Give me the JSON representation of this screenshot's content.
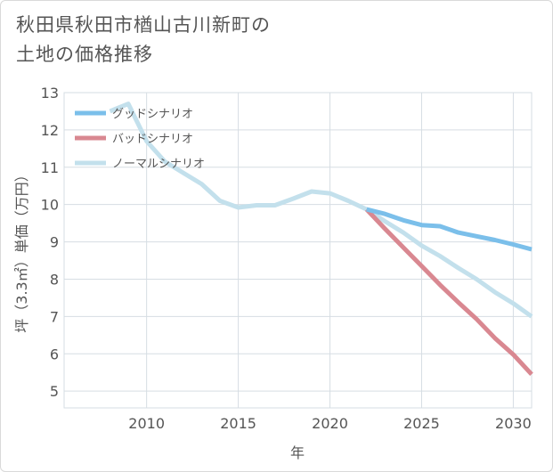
{
  "title": {
    "line1": "秋田県秋田市楢山古川新町の",
    "line2": "土地の価格推移"
  },
  "chart_data": {
    "type": "line",
    "title": "秋田県秋田市楢山古川新町の土地の価格推移",
    "xlabel": "年",
    "ylabel": "坪（3.3㎡）単価（万円）",
    "xlim": [
      2005.5,
      2031
    ],
    "ylim": [
      4.55,
      13
    ],
    "xticks": [
      2010,
      2015,
      2020,
      2025,
      2030
    ],
    "yticks": [
      5,
      6,
      7,
      8,
      9,
      10,
      11,
      12,
      13
    ],
    "grid": true,
    "legend_position": "top-left",
    "series": [
      {
        "name": "ノーマルシナリオ",
        "color": "#c3e0ec",
        "points": [
          [
            2008,
            12.5
          ],
          [
            2009,
            12.7
          ],
          [
            2010,
            11.7
          ],
          [
            2011,
            11.15
          ],
          [
            2012,
            10.85
          ],
          [
            2013,
            10.55
          ],
          [
            2014,
            10.1
          ],
          [
            2015,
            9.92
          ],
          [
            2016,
            9.98
          ],
          [
            2017,
            9.98
          ],
          [
            2018,
            10.16
          ],
          [
            2019,
            10.35
          ],
          [
            2020,
            10.3
          ],
          [
            2021,
            10.1
          ],
          [
            2022,
            9.87
          ],
          [
            2023,
            9.55
          ],
          [
            2024,
            9.25
          ],
          [
            2025,
            8.9
          ],
          [
            2026,
            8.62
          ],
          [
            2027,
            8.3
          ],
          [
            2028,
            8.0
          ],
          [
            2029,
            7.65
          ],
          [
            2030,
            7.35
          ],
          [
            2031,
            7.0
          ]
        ]
      },
      {
        "name": "バッドシナリオ",
        "color": "#d98891",
        "points": [
          [
            2022,
            9.87
          ],
          [
            2023,
            9.35
          ],
          [
            2024,
            8.85
          ],
          [
            2025,
            8.35
          ],
          [
            2026,
            7.85
          ],
          [
            2027,
            7.38
          ],
          [
            2028,
            6.93
          ],
          [
            2029,
            6.42
          ],
          [
            2030,
            5.98
          ],
          [
            2031,
            5.45
          ]
        ]
      },
      {
        "name": "グッドシナリオ",
        "color": "#7bbfea",
        "points": [
          [
            2022,
            9.87
          ],
          [
            2023,
            9.75
          ],
          [
            2024,
            9.58
          ],
          [
            2025,
            9.45
          ],
          [
            2026,
            9.42
          ],
          [
            2027,
            9.25
          ],
          [
            2028,
            9.15
          ],
          [
            2029,
            9.05
          ],
          [
            2030,
            8.93
          ],
          [
            2031,
            8.8
          ]
        ]
      }
    ],
    "legend": [
      {
        "name": "グッドシナリオ",
        "color": "#7bbfea"
      },
      {
        "name": "バッドシナリオ",
        "color": "#d98891"
      },
      {
        "name": "ノーマルシナリオ",
        "color": "#c3e0ec"
      }
    ]
  }
}
